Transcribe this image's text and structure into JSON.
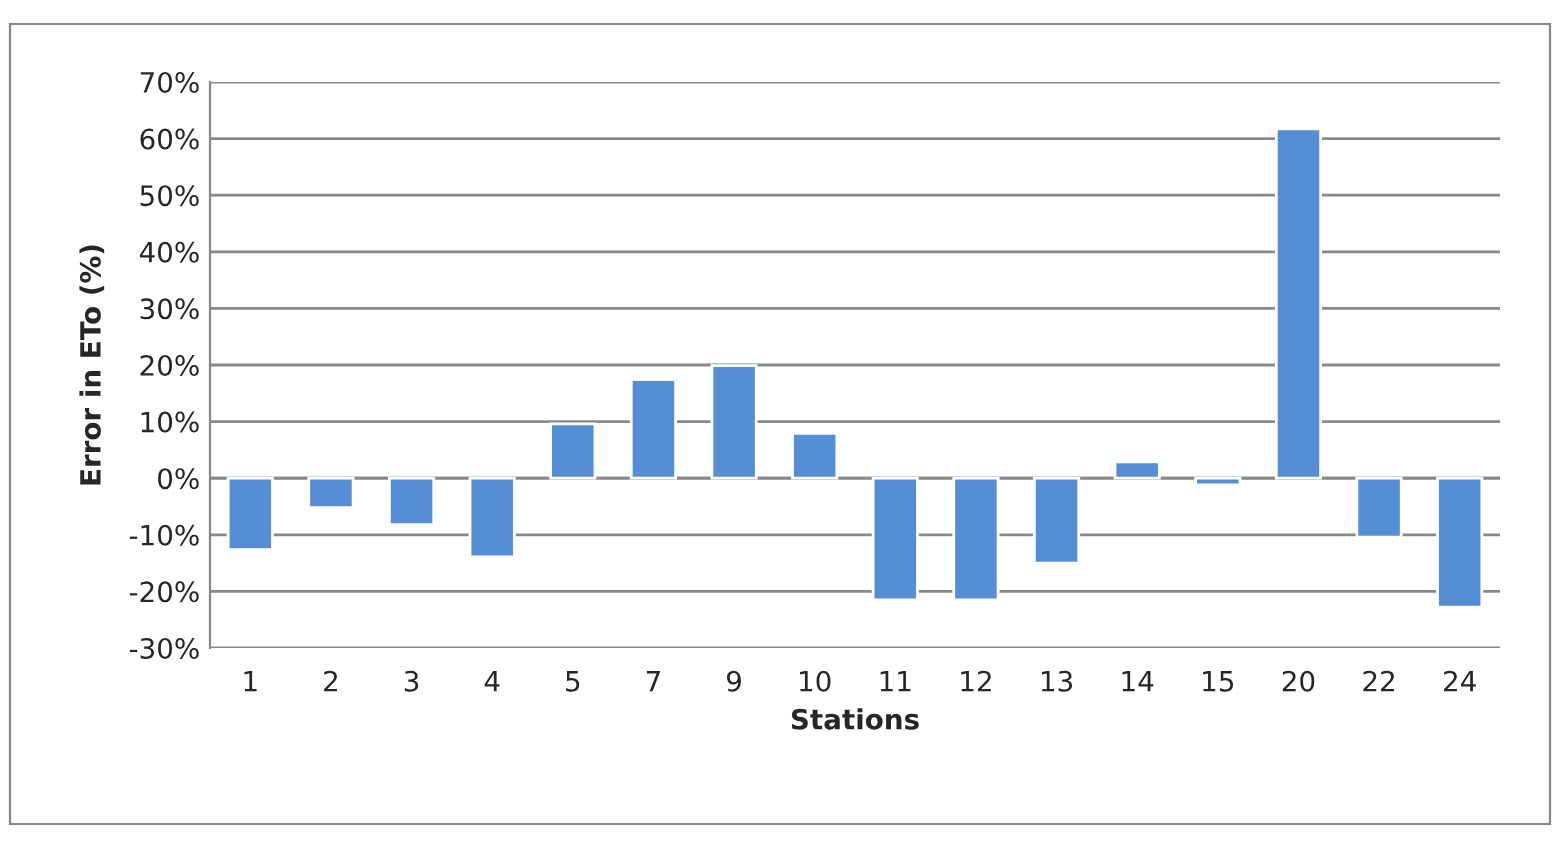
{
  "chart_data": {
    "type": "bar",
    "xlabel": "Stations",
    "ylabel": "Error in ETo (%)",
    "categories": [
      "1",
      "2",
      "3",
      "4",
      "5",
      "7",
      "9",
      "10",
      "11",
      "12",
      "13",
      "14",
      "15",
      "20",
      "22",
      "24"
    ],
    "values": [
      -12.6,
      -5.2,
      -8.2,
      -13.9,
      9.6,
      17.4,
      19.9,
      7.9,
      -21.5,
      -21.5,
      -15,
      2.9,
      -1.2,
      61.7,
      -10.4,
      -22.8
    ],
    "color": "#558ed5",
    "ylim": [
      -30,
      70
    ],
    "yticks": [
      {
        "value": -30,
        "label": "-30%"
      },
      {
        "value": -20,
        "label": "-20%"
      },
      {
        "value": -10,
        "label": "-10%"
      },
      {
        "value": 0,
        "label": "0%"
      },
      {
        "value": 10,
        "label": "10%"
      },
      {
        "value": 20,
        "label": "20%"
      },
      {
        "value": 30,
        "label": "30%"
      },
      {
        "value": 40,
        "label": "40%"
      },
      {
        "value": 50,
        "label": "50%"
      },
      {
        "value": 60,
        "label": "60%"
      },
      {
        "value": 70,
        "label": "70%"
      }
    ],
    "grid": "y",
    "legend": false
  }
}
